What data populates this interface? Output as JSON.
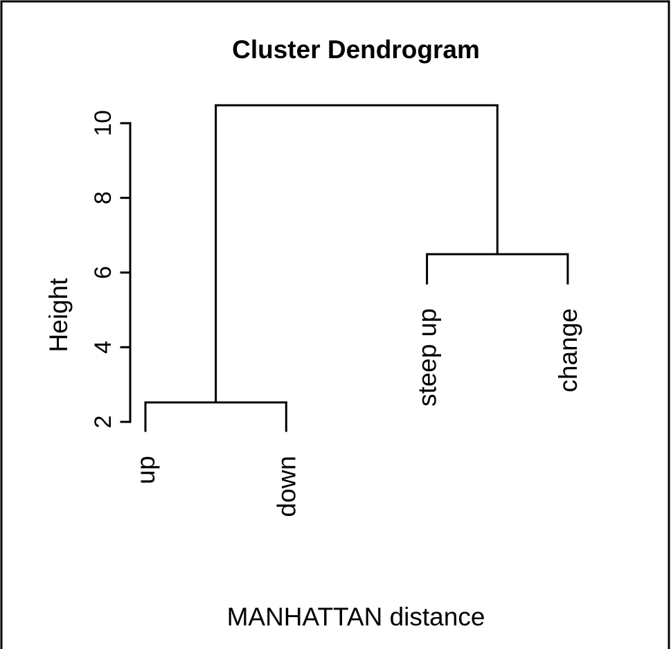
{
  "chart_data": {
    "type": "dendrogram",
    "title": "Cluster Dendrogram",
    "xlabel": "MANHATTAN distance",
    "ylabel": "Height",
    "ylim": [
      1.76,
      10.48
    ],
    "yticks": [
      2,
      4,
      6,
      8,
      10
    ],
    "color": "#000000",
    "tree": {
      "height": 10.48,
      "children": [
        {
          "height": 2.52,
          "children": [
            {
              "label": "up",
              "height": 1.76
            },
            {
              "label": "down",
              "height": 1.76
            }
          ]
        },
        {
          "height": 6.49,
          "children": [
            {
              "label": "steep up",
              "height": 5.71
            },
            {
              "label": "change",
              "height": 5.71
            }
          ]
        }
      ]
    }
  }
}
